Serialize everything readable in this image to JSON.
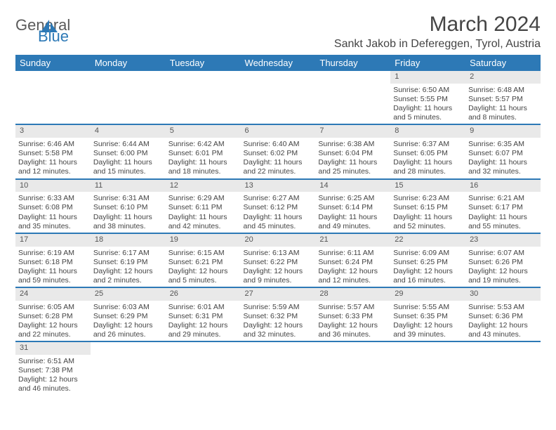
{
  "logo": {
    "text1": "General",
    "text2": "Blue",
    "accent": "#2d79b6",
    "text_color": "#5a5a5a"
  },
  "title": "March 2024",
  "location": "Sankt Jakob in Defereggen, Tyrol, Austria",
  "colors": {
    "header_bg": "#2d79b6",
    "header_fg": "#ffffff",
    "daynum_bg": "#e9e9e9",
    "row_border": "#2d79b6",
    "text": "#444444"
  },
  "day_headers": [
    "Sunday",
    "Monday",
    "Tuesday",
    "Wednesday",
    "Thursday",
    "Friday",
    "Saturday"
  ],
  "weeks": [
    [
      {
        "n": "",
        "lines": []
      },
      {
        "n": "",
        "lines": []
      },
      {
        "n": "",
        "lines": []
      },
      {
        "n": "",
        "lines": []
      },
      {
        "n": "",
        "lines": []
      },
      {
        "n": "1",
        "lines": [
          "Sunrise: 6:50 AM",
          "Sunset: 5:55 PM",
          "Daylight: 11 hours",
          "and 5 minutes."
        ]
      },
      {
        "n": "2",
        "lines": [
          "Sunrise: 6:48 AM",
          "Sunset: 5:57 PM",
          "Daylight: 11 hours",
          "and 8 minutes."
        ]
      }
    ],
    [
      {
        "n": "3",
        "lines": [
          "Sunrise: 6:46 AM",
          "Sunset: 5:58 PM",
          "Daylight: 11 hours",
          "and 12 minutes."
        ]
      },
      {
        "n": "4",
        "lines": [
          "Sunrise: 6:44 AM",
          "Sunset: 6:00 PM",
          "Daylight: 11 hours",
          "and 15 minutes."
        ]
      },
      {
        "n": "5",
        "lines": [
          "Sunrise: 6:42 AM",
          "Sunset: 6:01 PM",
          "Daylight: 11 hours",
          "and 18 minutes."
        ]
      },
      {
        "n": "6",
        "lines": [
          "Sunrise: 6:40 AM",
          "Sunset: 6:02 PM",
          "Daylight: 11 hours",
          "and 22 minutes."
        ]
      },
      {
        "n": "7",
        "lines": [
          "Sunrise: 6:38 AM",
          "Sunset: 6:04 PM",
          "Daylight: 11 hours",
          "and 25 minutes."
        ]
      },
      {
        "n": "8",
        "lines": [
          "Sunrise: 6:37 AM",
          "Sunset: 6:05 PM",
          "Daylight: 11 hours",
          "and 28 minutes."
        ]
      },
      {
        "n": "9",
        "lines": [
          "Sunrise: 6:35 AM",
          "Sunset: 6:07 PM",
          "Daylight: 11 hours",
          "and 32 minutes."
        ]
      }
    ],
    [
      {
        "n": "10",
        "lines": [
          "Sunrise: 6:33 AM",
          "Sunset: 6:08 PM",
          "Daylight: 11 hours",
          "and 35 minutes."
        ]
      },
      {
        "n": "11",
        "lines": [
          "Sunrise: 6:31 AM",
          "Sunset: 6:10 PM",
          "Daylight: 11 hours",
          "and 38 minutes."
        ]
      },
      {
        "n": "12",
        "lines": [
          "Sunrise: 6:29 AM",
          "Sunset: 6:11 PM",
          "Daylight: 11 hours",
          "and 42 minutes."
        ]
      },
      {
        "n": "13",
        "lines": [
          "Sunrise: 6:27 AM",
          "Sunset: 6:12 PM",
          "Daylight: 11 hours",
          "and 45 minutes."
        ]
      },
      {
        "n": "14",
        "lines": [
          "Sunrise: 6:25 AM",
          "Sunset: 6:14 PM",
          "Daylight: 11 hours",
          "and 49 minutes."
        ]
      },
      {
        "n": "15",
        "lines": [
          "Sunrise: 6:23 AM",
          "Sunset: 6:15 PM",
          "Daylight: 11 hours",
          "and 52 minutes."
        ]
      },
      {
        "n": "16",
        "lines": [
          "Sunrise: 6:21 AM",
          "Sunset: 6:17 PM",
          "Daylight: 11 hours",
          "and 55 minutes."
        ]
      }
    ],
    [
      {
        "n": "17",
        "lines": [
          "Sunrise: 6:19 AM",
          "Sunset: 6:18 PM",
          "Daylight: 11 hours",
          "and 59 minutes."
        ]
      },
      {
        "n": "18",
        "lines": [
          "Sunrise: 6:17 AM",
          "Sunset: 6:19 PM",
          "Daylight: 12 hours",
          "and 2 minutes."
        ]
      },
      {
        "n": "19",
        "lines": [
          "Sunrise: 6:15 AM",
          "Sunset: 6:21 PM",
          "Daylight: 12 hours",
          "and 5 minutes."
        ]
      },
      {
        "n": "20",
        "lines": [
          "Sunrise: 6:13 AM",
          "Sunset: 6:22 PM",
          "Daylight: 12 hours",
          "and 9 minutes."
        ]
      },
      {
        "n": "21",
        "lines": [
          "Sunrise: 6:11 AM",
          "Sunset: 6:24 PM",
          "Daylight: 12 hours",
          "and 12 minutes."
        ]
      },
      {
        "n": "22",
        "lines": [
          "Sunrise: 6:09 AM",
          "Sunset: 6:25 PM",
          "Daylight: 12 hours",
          "and 16 minutes."
        ]
      },
      {
        "n": "23",
        "lines": [
          "Sunrise: 6:07 AM",
          "Sunset: 6:26 PM",
          "Daylight: 12 hours",
          "and 19 minutes."
        ]
      }
    ],
    [
      {
        "n": "24",
        "lines": [
          "Sunrise: 6:05 AM",
          "Sunset: 6:28 PM",
          "Daylight: 12 hours",
          "and 22 minutes."
        ]
      },
      {
        "n": "25",
        "lines": [
          "Sunrise: 6:03 AM",
          "Sunset: 6:29 PM",
          "Daylight: 12 hours",
          "and 26 minutes."
        ]
      },
      {
        "n": "26",
        "lines": [
          "Sunrise: 6:01 AM",
          "Sunset: 6:31 PM",
          "Daylight: 12 hours",
          "and 29 minutes."
        ]
      },
      {
        "n": "27",
        "lines": [
          "Sunrise: 5:59 AM",
          "Sunset: 6:32 PM",
          "Daylight: 12 hours",
          "and 32 minutes."
        ]
      },
      {
        "n": "28",
        "lines": [
          "Sunrise: 5:57 AM",
          "Sunset: 6:33 PM",
          "Daylight: 12 hours",
          "and 36 minutes."
        ]
      },
      {
        "n": "29",
        "lines": [
          "Sunrise: 5:55 AM",
          "Sunset: 6:35 PM",
          "Daylight: 12 hours",
          "and 39 minutes."
        ]
      },
      {
        "n": "30",
        "lines": [
          "Sunrise: 5:53 AM",
          "Sunset: 6:36 PM",
          "Daylight: 12 hours",
          "and 43 minutes."
        ]
      }
    ],
    [
      {
        "n": "31",
        "lines": [
          "Sunrise: 6:51 AM",
          "Sunset: 7:38 PM",
          "Daylight: 12 hours",
          "and 46 minutes."
        ]
      },
      {
        "n": "",
        "lines": []
      },
      {
        "n": "",
        "lines": []
      },
      {
        "n": "",
        "lines": []
      },
      {
        "n": "",
        "lines": []
      },
      {
        "n": "",
        "lines": []
      },
      {
        "n": "",
        "lines": []
      }
    ]
  ]
}
